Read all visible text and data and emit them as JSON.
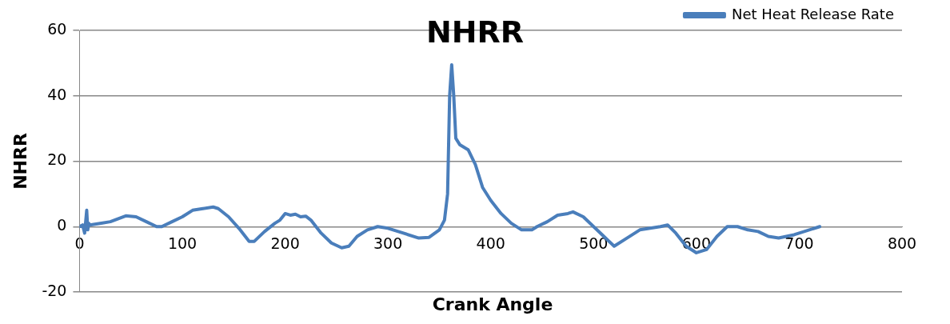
{
  "chart_data": {
    "type": "line",
    "title": "NHRR",
    "xlabel": "Crank Angle",
    "ylabel": "NHRR",
    "x": [
      0,
      3,
      5,
      7,
      8,
      9,
      10,
      20,
      30,
      45,
      55,
      65,
      75,
      80,
      90,
      100,
      110,
      120,
      130,
      135,
      145,
      155,
      165,
      170,
      180,
      190,
      195,
      200,
      205,
      210,
      215,
      220,
      225,
      235,
      245,
      255,
      262,
      270,
      280,
      290,
      300,
      315,
      330,
      340,
      350,
      355,
      358,
      360,
      362,
      364,
      366,
      370,
      378,
      385,
      392,
      400,
      410,
      420,
      430,
      440,
      445,
      455,
      465,
      475,
      480,
      490,
      500,
      510,
      520,
      530,
      545,
      555,
      565,
      572,
      580,
      590,
      600,
      610,
      620,
      630,
      640,
      650,
      660,
      670,
      680,
      695,
      720
    ],
    "series": [
      {
        "name": "Net Heat Release Rate",
        "color": "#4a7ebb",
        "values": [
          0,
          0.5,
          -2,
          5,
          -1,
          1,
          0.5,
          1,
          1.5,
          3.3,
          3,
          1.5,
          0,
          0,
          1.5,
          3,
          5,
          5.5,
          6,
          5.5,
          3,
          -0.5,
          -4.5,
          -4.5,
          -1.5,
          1,
          2,
          4,
          3.5,
          3.8,
          3,
          3.2,
          2,
          -2,
          -5,
          -6.5,
          -6,
          -3,
          -1,
          0,
          -0.5,
          -2,
          -3.5,
          -3.3,
          -1,
          2,
          10,
          40,
          49.5,
          40,
          27,
          25,
          23.5,
          19,
          12,
          8,
          4,
          1,
          -1,
          -1,
          0,
          1.5,
          3.5,
          4,
          4.5,
          3,
          0,
          -3,
          -6,
          -4,
          -1,
          -0.5,
          0,
          0.5,
          -2,
          -6,
          -8,
          -7,
          -3,
          0,
          0,
          -1,
          -1.5,
          -3,
          -3.5,
          -2.5,
          0
        ]
      }
    ],
    "xlim": [
      0,
      800
    ],
    "xticks": [
      0,
      100,
      200,
      300,
      400,
      500,
      600,
      700,
      800
    ],
    "ylim": [
      -20,
      60
    ],
    "yticks": [
      -20,
      0,
      20,
      40,
      60
    ],
    "grid": "y",
    "legend": "top right",
    "marker": "none",
    "line_style": "solid"
  }
}
